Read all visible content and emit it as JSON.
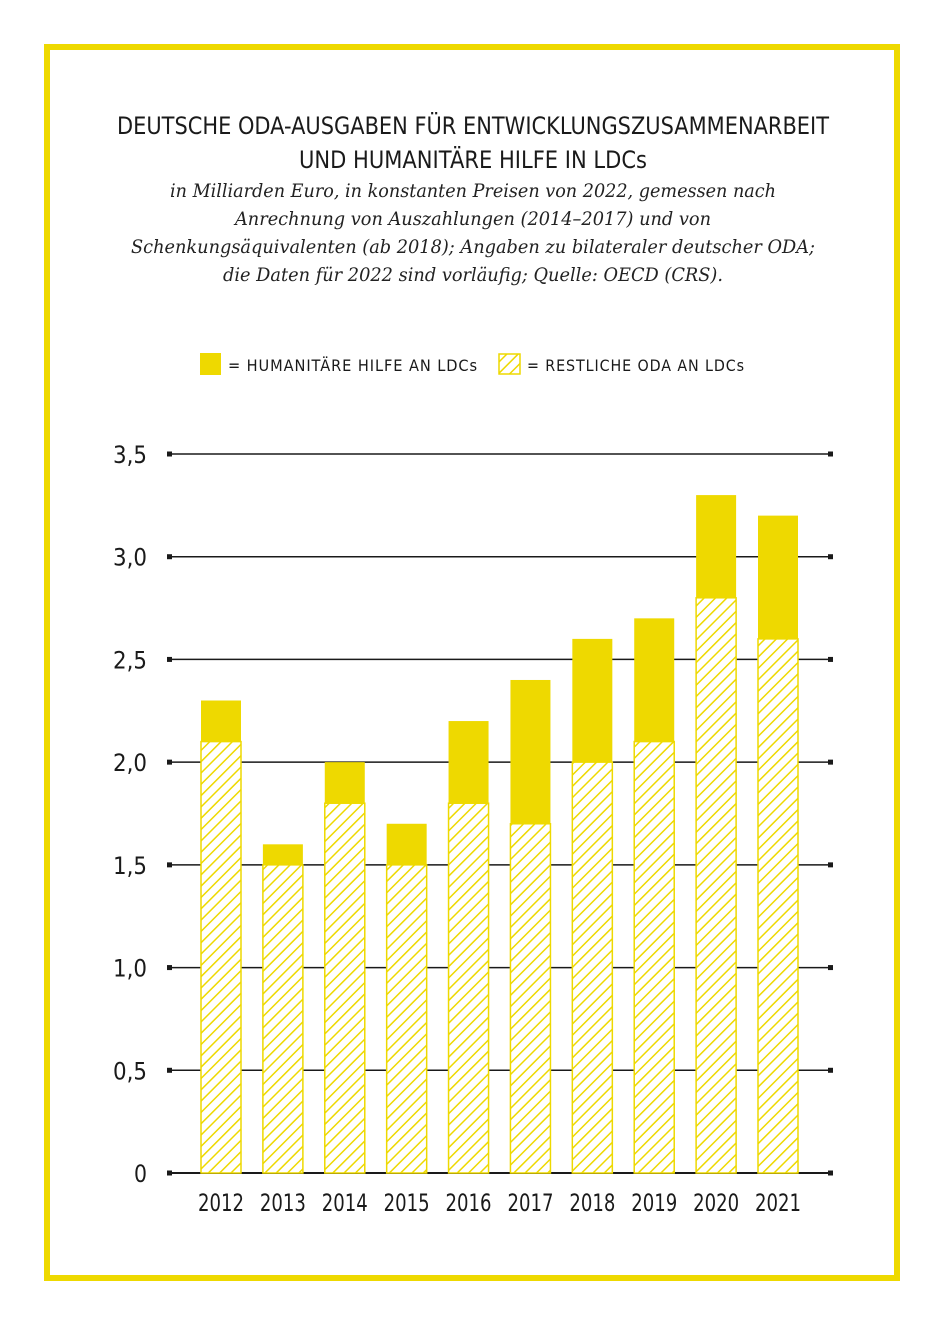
{
  "colors": {
    "humanitarian": "#EED900",
    "frame": "#EED900",
    "grid": "#1a1a1a"
  },
  "chart_data": {
    "type": "bar",
    "stacked": true,
    "title_lines": [
      "DEUTSCHE ODA-AUSGABEN FÜR ENTWICKLUNGSZUSAMMENARBEIT",
      "UND HUMANITÄRE HILFE IN LDCs"
    ],
    "subtitle_lines": [
      "in Milliarden Euro, in konstanten Preisen von 2022, gemessen nach",
      "Anrechnung von Auszahlungen (2014–2017) und von",
      "Schenkungsäquivalenten (ab 2018); Angaben zu bilateraler deutscher ODA;",
      "die Daten für 2022 sind vorläufig; Quelle: OECD (CRS)."
    ],
    "legend": [
      {
        "label": "= HUMANITÄRE HILFE AN LDCs",
        "style": "solid"
      },
      {
        "label": "= RESTLICHE ODA AN LDCs",
        "style": "hatched"
      }
    ],
    "legend_placement": "top-center",
    "categories": [
      "2012",
      "2013",
      "2014",
      "2015",
      "2016",
      "2017",
      "2018",
      "2019",
      "2020",
      "2021"
    ],
    "series": [
      {
        "name": "= RESTLICHE ODA AN LDCs",
        "values": [
          2.1,
          1.5,
          1.8,
          1.5,
          1.8,
          1.7,
          2.0,
          2.1,
          2.8,
          2.6
        ]
      },
      {
        "name": "= HUMANITÄRE HILFE AN LDCs",
        "values": [
          0.2,
          0.1,
          0.2,
          0.2,
          0.4,
          0.7,
          0.6,
          0.6,
          0.5,
          0.6
        ]
      }
    ],
    "y_ticks": [
      "0",
      "0,5",
      "1,0",
      "1,5",
      "2,0",
      "2,5",
      "3,0",
      "3,5"
    ],
    "ylim": [
      0,
      3.5
    ],
    "grid": true
  }
}
